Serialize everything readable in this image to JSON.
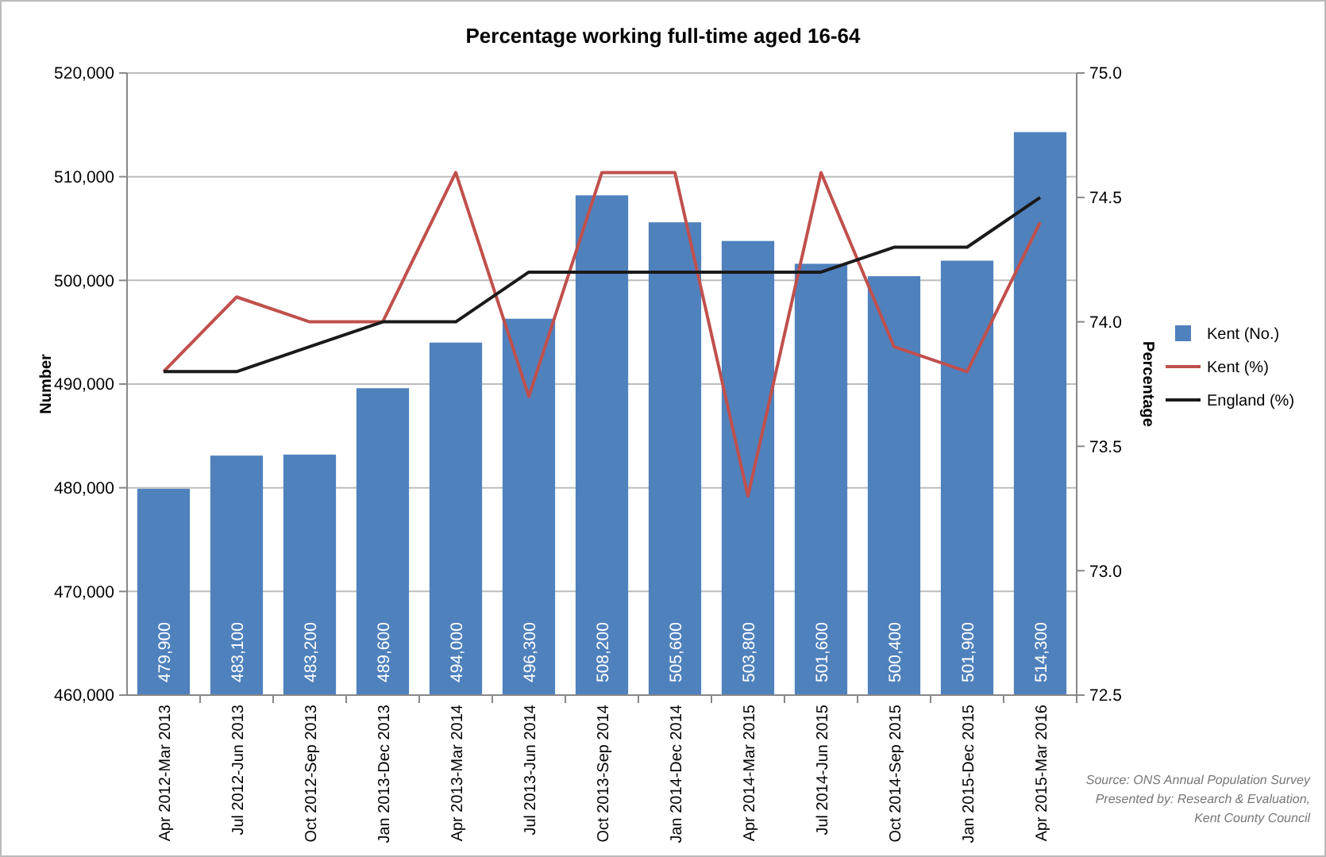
{
  "chart_data": {
    "type": "bar",
    "title": "Percentage  working full-time aged 16-64",
    "ylabel": "Number",
    "y2label": "Percentage",
    "categories": [
      "Apr 2012-Mar 2013",
      "Jul 2012-Jun 2013",
      "Oct 2012-Sep 2013",
      "Jan 2013-Dec 2013",
      "Apr 2013-Mar 2014",
      "Jul 2013-Jun 2014",
      "Oct 2013-Sep 2014",
      "Jan 2014-Dec 2014",
      "Apr 2014-Mar 2015",
      "Jul 2014-Jun 2015",
      "Oct 2014-Sep 2015",
      "Jan 2015-Dec 2015",
      "Apr 2015-Mar 2016"
    ],
    "series": [
      {
        "name": "Kent (No.)",
        "color": "#4f81bd",
        "values": [
          479900,
          483100,
          483200,
          489600,
          494000,
          496300,
          508200,
          505600,
          503800,
          501600,
          500400,
          501900,
          514300
        ],
        "value_labels": [
          "479,900",
          "483,100",
          "483,200",
          "489,600",
          "494,000",
          "496,300",
          "508,200",
          "505,600",
          "503,800",
          "501,600",
          "500,400",
          "501,900",
          "514,300"
        ]
      },
      {
        "name": "Kent (%)",
        "type": "line",
        "axis": "y2",
        "color": "#c0504d",
        "values": [
          73.8,
          74.1,
          74.0,
          74.0,
          74.6,
          73.7,
          74.6,
          74.6,
          73.3,
          74.6,
          73.9,
          73.8,
          74.4
        ]
      },
      {
        "name": "England (%)",
        "type": "line",
        "axis": "y2",
        "color": "#1a1a1a",
        "values": [
          73.8,
          73.8,
          73.9,
          74.0,
          74.0,
          74.2,
          74.2,
          74.2,
          74.2,
          74.2,
          74.3,
          74.3,
          74.5
        ]
      }
    ],
    "ylim": [
      460000,
      520000
    ],
    "yticks": [
      {
        "value": 460000,
        "label": "460,000"
      },
      {
        "value": 470000,
        "label": "470,000"
      },
      {
        "value": 480000,
        "label": "480,000"
      },
      {
        "value": 490000,
        "label": "490,000"
      },
      {
        "value": 500000,
        "label": "500,000"
      },
      {
        "value": 510000,
        "label": "510,000"
      },
      {
        "value": 520000,
        "label": "520,000"
      }
    ],
    "y2lim": [
      72.5,
      75
    ],
    "y2ticks": [
      {
        "value": 72.5,
        "label": "72.5"
      },
      {
        "value": 73,
        "label": "73.0"
      },
      {
        "value": 73.5,
        "label": "73.5"
      },
      {
        "value": 74,
        "label": "74.0"
      },
      {
        "value": 74.5,
        "label": "74.5"
      },
      {
        "value": 75,
        "label": "75.0"
      }
    ],
    "grid": "y",
    "legend": "right",
    "annotations": [
      "Source: ONS Annual Population Survey",
      "Presented by: Research & Evaluation,",
      "Kent County Council"
    ]
  }
}
